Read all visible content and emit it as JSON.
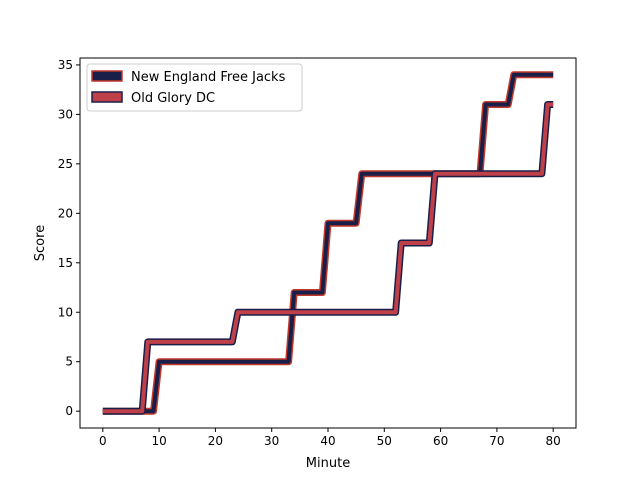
{
  "chart_data": {
    "type": "line",
    "title": "",
    "xlabel": "Minute",
    "ylabel": "Score",
    "xlim": [
      -4.05,
      84.05
    ],
    "ylim": [
      -1.7,
      35.7
    ],
    "xticks": [
      0,
      10,
      20,
      30,
      40,
      50,
      60,
      70,
      80
    ],
    "yticks": [
      0,
      5,
      10,
      15,
      20,
      25,
      30,
      35
    ],
    "grid": false,
    "legend": "top-left",
    "series": [
      {
        "name": "New England Free Jacks",
        "line_color": "#1a1f4a",
        "edge_color": "#c0392b",
        "points": [
          [
            0,
            0
          ],
          [
            8,
            0
          ],
          [
            9,
            0
          ],
          [
            10,
            5
          ],
          [
            32,
            5
          ],
          [
            33,
            5
          ],
          [
            34,
            12
          ],
          [
            38,
            12
          ],
          [
            39,
            12
          ],
          [
            40,
            19
          ],
          [
            44,
            19
          ],
          [
            45,
            19
          ],
          [
            46,
            24
          ],
          [
            66,
            24
          ],
          [
            67,
            24
          ],
          [
            68,
            31
          ],
          [
            71,
            31
          ],
          [
            72,
            31
          ],
          [
            73,
            34
          ],
          [
            80,
            34
          ]
        ]
      },
      {
        "name": "Old Glory DC",
        "line_color": "#c0404a",
        "edge_color": "#1a1f4a",
        "points": [
          [
            0,
            0
          ],
          [
            6,
            0
          ],
          [
            7,
            0
          ],
          [
            8,
            7
          ],
          [
            22,
            7
          ],
          [
            23,
            7
          ],
          [
            24,
            10
          ],
          [
            51,
            10
          ],
          [
            52,
            10
          ],
          [
            53,
            17
          ],
          [
            57,
            17
          ],
          [
            58,
            17
          ],
          [
            59,
            24
          ],
          [
            77,
            24
          ],
          [
            78,
            24
          ],
          [
            79,
            31
          ],
          [
            80,
            31
          ]
        ]
      }
    ]
  }
}
